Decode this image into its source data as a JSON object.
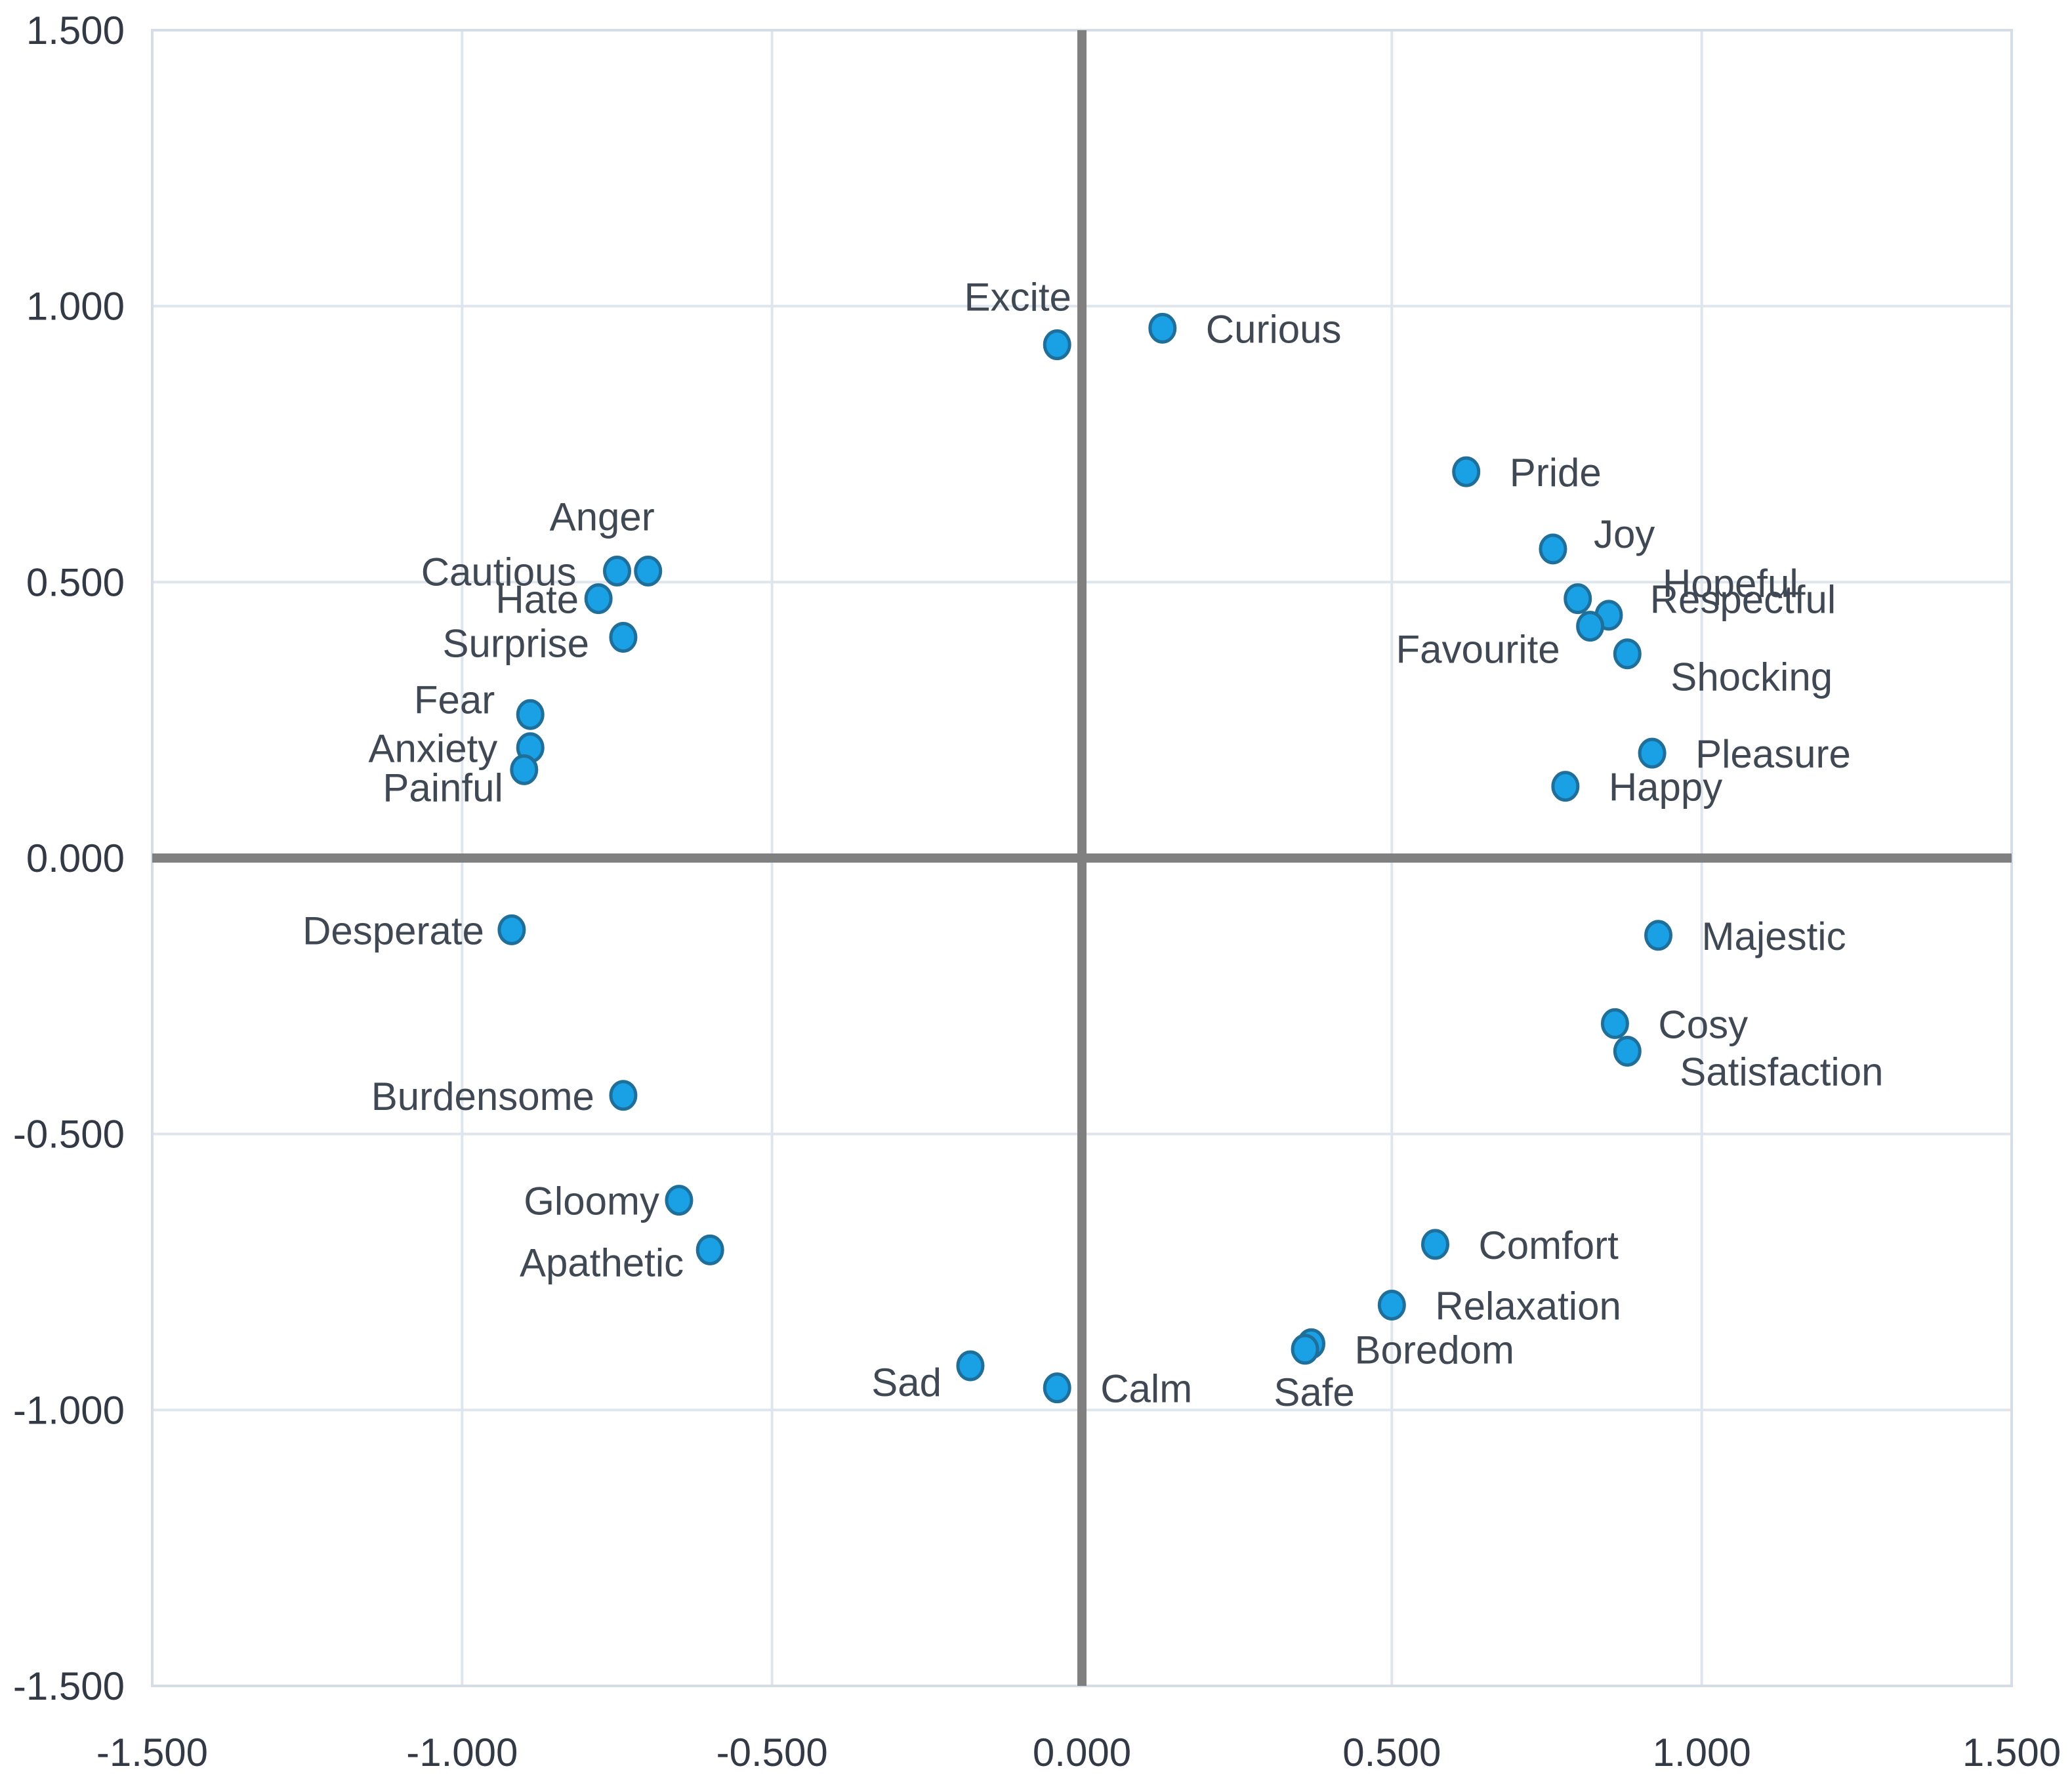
{
  "chart_data": {
    "type": "scatter",
    "title": "",
    "xlabel": "",
    "ylabel": "",
    "xlim": [
      -1.5,
      1.5
    ],
    "ylim": [
      -1.5,
      1.5
    ],
    "x_ticks": [
      "-1.500",
      "-1.000",
      "-0.500",
      "0.000",
      "0.500",
      "1.000",
      "1.500"
    ],
    "y_ticks": [
      "1.500",
      "1.000",
      "0.500",
      "0.000",
      "-0.500",
      "-1.000",
      "-1.500"
    ],
    "grid": true,
    "colors": {
      "marker": "#1aa0e4",
      "marker_edge": "#1f6f9a",
      "zero_axes": "#808080",
      "grid": "#dfe5ec"
    },
    "points": [
      {
        "label": "Excite",
        "x": -0.04,
        "y": 0.93
      },
      {
        "label": "Curious",
        "x": 0.13,
        "y": 0.96
      },
      {
        "label": "Pride",
        "x": 0.62,
        "y": 0.7
      },
      {
        "label": "Joy",
        "x": 0.76,
        "y": 0.56
      },
      {
        "label": "Hopeful",
        "x": 0.85,
        "y": 0.44
      },
      {
        "label": "Respectful",
        "x": 0.8,
        "y": 0.47
      },
      {
        "label": "Favourite",
        "x": 0.82,
        "y": 0.42
      },
      {
        "label": "Shocking",
        "x": 0.88,
        "y": 0.37
      },
      {
        "label": "Pleasure",
        "x": 0.92,
        "y": 0.19
      },
      {
        "label": "Happy",
        "x": 0.78,
        "y": 0.13
      },
      {
        "label": "Anger",
        "x": -0.7,
        "y": 0.52
      },
      {
        "label": "Cautious",
        "x": -0.75,
        "y": 0.52
      },
      {
        "label": "Hate",
        "x": -0.78,
        "y": 0.47
      },
      {
        "label": "Surprise",
        "x": -0.74,
        "y": 0.4
      },
      {
        "label": "Fear",
        "x": -0.89,
        "y": 0.26
      },
      {
        "label": "Anxiety",
        "x": -0.89,
        "y": 0.2
      },
      {
        "label": "Painful",
        "x": -0.9,
        "y": 0.16
      },
      {
        "label": "Desperate",
        "x": -0.92,
        "y": -0.13
      },
      {
        "label": "Burdensome",
        "x": -0.74,
        "y": -0.43
      },
      {
        "label": "Gloomy",
        "x": -0.65,
        "y": -0.62
      },
      {
        "label": "Apathetic",
        "x": -0.6,
        "y": -0.71
      },
      {
        "label": "Majestic",
        "x": 0.93,
        "y": -0.14
      },
      {
        "label": "Cosy",
        "x": 0.86,
        "y": -0.3
      },
      {
        "label": "Satisfaction",
        "x": 0.88,
        "y": -0.35
      },
      {
        "label": "Comfort",
        "x": 0.57,
        "y": -0.7
      },
      {
        "label": "Relaxation",
        "x": 0.5,
        "y": -0.81
      },
      {
        "label": "Boredom",
        "x": 0.37,
        "y": -0.88
      },
      {
        "label": "Safe",
        "x": 0.36,
        "y": -0.89
      },
      {
        "label": "Sad",
        "x": -0.18,
        "y": -0.92
      },
      {
        "label": "Calm",
        "x": -0.04,
        "y": -0.96
      }
    ]
  }
}
